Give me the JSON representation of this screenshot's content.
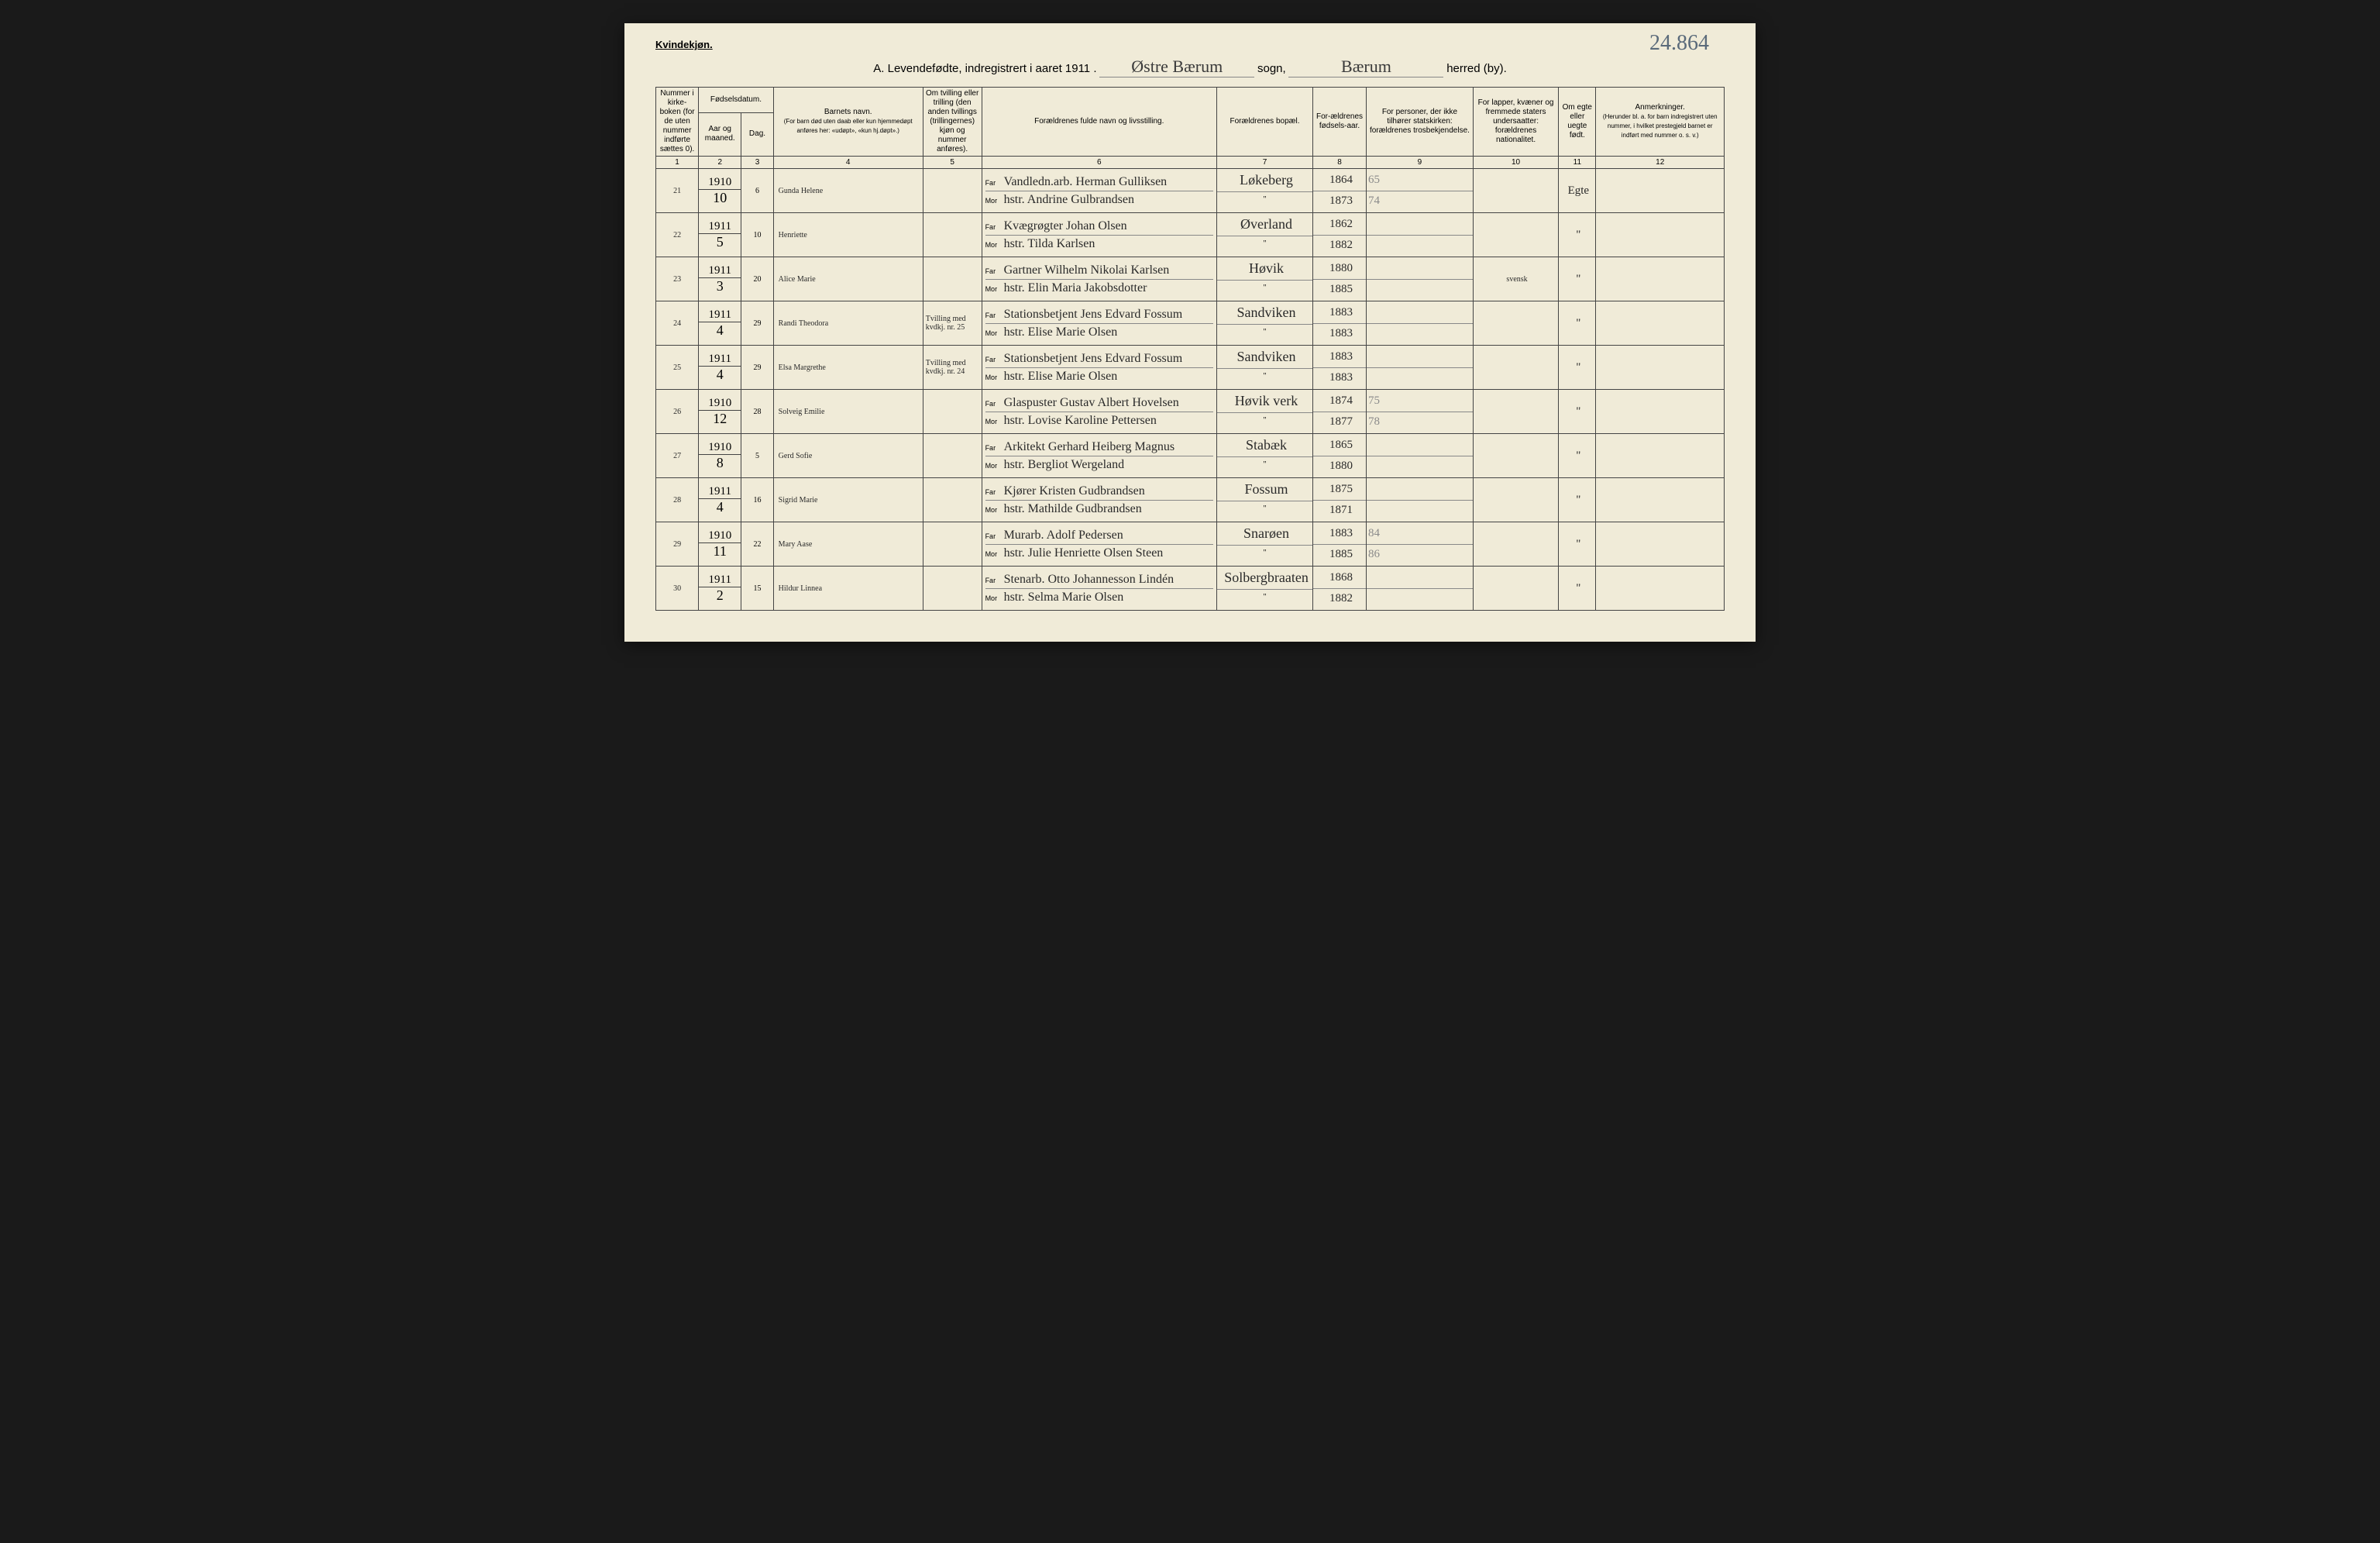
{
  "page": {
    "top_annotation": "24.864",
    "gender_label": "Kvindekjøn.",
    "title_prefix": "A.  Levendefødte, indregistrert i aaret 1911 .",
    "sogn_value": "Østre Bærum",
    "sogn_label": "sogn,",
    "herred_value": "Bærum",
    "herred_label": "herred (by)."
  },
  "headers": {
    "c1": "Nummer i kirke-boken (for de uten nummer indførte sættes 0).",
    "c2_group": "Fødselsdatum.",
    "c2a": "Aar og maaned.",
    "c2b": "Dag.",
    "c4": "Barnets navn.",
    "c4_sub": "(For barn død uten daab eller kun hjemmedøpt anføres her: «udøpt», «kun hj.døpt».)",
    "c5": "Om tvilling eller trilling (den anden tvillings (trillingernes) kjøn og nummer anføres).",
    "c6": "Forældrenes fulde navn og livsstilling.",
    "c7": "Forældrenes bopæl.",
    "c8": "For-ældrenes fødsels-aar.",
    "c9": "For personer, der ikke tilhører statskirken: forældrenes trosbekjendelse.",
    "c10": "For lapper, kvæner og fremmede staters undersaatter: forældrenes nationalitet.",
    "c11": "Om egte eller uegte født.",
    "c12": "Anmerkninger.",
    "c12_sub": "(Herunder bl. a. for barn indregistrert uten nummer, i hvilket prestegjeld barnet er indført med nummer o. s. v.)"
  },
  "colnums": [
    "1",
    "2",
    "3",
    "4",
    "5",
    "6",
    "7",
    "8",
    "9",
    "10",
    "11",
    "12"
  ],
  "parent_labels": {
    "far": "Far",
    "mor": "Mor"
  },
  "rows": [
    {
      "num": "21",
      "year": "1910",
      "month": "10",
      "day": "6",
      "child": "Gunda Helene",
      "twin": "",
      "far": "Vandledn.arb. Herman Gulliksen",
      "mor": "hstr. Andrine Gulbrandsen",
      "res_far": "Løkeberg",
      "res_mor": "\"",
      "by_far": "1864",
      "by_mor": "1873",
      "rel_far": "65",
      "rel_mor": "74",
      "nat": "",
      "legit": "Egte",
      "notes": ""
    },
    {
      "num": "22",
      "year": "1911",
      "month": "5",
      "day": "10",
      "child": "Henriette",
      "twin": "",
      "far": "Kvægrøgter Johan Olsen",
      "mor": "hstr. Tilda Karlsen",
      "res_far": "Øverland",
      "res_mor": "\"",
      "by_far": "1862",
      "by_mor": "1882",
      "rel_far": "",
      "rel_mor": "",
      "nat": "",
      "legit": "\"",
      "notes": ""
    },
    {
      "num": "23",
      "year": "1911",
      "month": "3",
      "day": "20",
      "child": "Alice Marie",
      "twin": "",
      "far": "Gartner Wilhelm Nikolai Karlsen",
      "mor": "hstr. Elin Maria Jakobsdotter",
      "res_far": "Høvik",
      "res_mor": "\"",
      "by_far": "1880",
      "by_mor": "1885",
      "rel_far": "",
      "rel_mor": "",
      "nat": "svensk",
      "legit": "\"",
      "notes": ""
    },
    {
      "num": "24",
      "year": "1911",
      "month": "4",
      "day": "29",
      "child": "Randi Theodora",
      "twin": "Tvilling med kvdkj. nr. 25",
      "far": "Stationsbetjent Jens Edvard Fossum",
      "mor": "hstr. Elise Marie Olsen",
      "res_far": "Sandviken",
      "res_mor": "\"",
      "by_far": "1883",
      "by_mor": "1883",
      "rel_far": "",
      "rel_mor": "",
      "nat": "",
      "legit": "\"",
      "notes": ""
    },
    {
      "num": "25",
      "year": "1911",
      "month": "4",
      "day": "29",
      "child": "Elsa Margrethe",
      "twin": "Tvilling med kvdkj. nr. 24",
      "far": "Stationsbetjent Jens Edvard Fossum",
      "mor": "hstr. Elise Marie Olsen",
      "res_far": "Sandviken",
      "res_mor": "\"",
      "by_far": "1883",
      "by_mor": "1883",
      "rel_far": "",
      "rel_mor": "",
      "nat": "",
      "legit": "\"",
      "notes": ""
    },
    {
      "num": "26",
      "year": "1910",
      "month": "12",
      "day": "28",
      "child": "Solveig Emilie",
      "twin": "",
      "far": "Glaspuster Gustav Albert Hovelsen",
      "mor": "hstr. Lovise Karoline Pettersen",
      "res_far": "Høvik verk",
      "res_mor": "\"",
      "by_far": "1874",
      "by_mor": "1877",
      "rel_far": "75",
      "rel_mor": "78",
      "nat": "",
      "legit": "\"",
      "notes": ""
    },
    {
      "num": "27",
      "year": "1910",
      "month": "8",
      "day": "5",
      "child": "Gerd Sofie",
      "twin": "",
      "far": "Arkitekt Gerhard Heiberg Magnus",
      "mor": "hstr. Bergliot Wergeland",
      "res_far": "Stabæk",
      "res_mor": "\"",
      "by_far": "1865",
      "by_mor": "1880",
      "rel_far": "",
      "rel_mor": "",
      "nat": "",
      "legit": "\"",
      "notes": ""
    },
    {
      "num": "28",
      "year": "1911",
      "month": "4",
      "day": "16",
      "child": "Sigrid Marie",
      "twin": "",
      "far": "Kjører Kristen Gudbrandsen",
      "mor": "hstr. Mathilde Gudbrandsen",
      "res_far": "Fossum",
      "res_mor": "\"",
      "by_far": "1875",
      "by_mor": "1871",
      "rel_far": "",
      "rel_mor": "",
      "nat": "",
      "legit": "\"",
      "notes": ""
    },
    {
      "num": "29",
      "year": "1910",
      "month": "11",
      "day": "22",
      "child": "Mary Aase",
      "twin": "",
      "far": "Murarb. Adolf Pedersen",
      "mor": "hstr. Julie Henriette Olsen Steen",
      "res_far": "Snarøen",
      "res_mor": "\"",
      "by_far": "1883",
      "by_mor": "1885",
      "rel_far": "84",
      "rel_mor": "86",
      "nat": "",
      "legit": "\"",
      "notes": ""
    },
    {
      "num": "30",
      "year": "1911",
      "month": "2",
      "day": "15",
      "child": "Hildur Linnea",
      "twin": "",
      "far": "Stenarb. Otto Johannesson Lindén",
      "mor": "hstr. Selma Marie Olsen",
      "res_far": "Solbergbraaten",
      "res_mor": "\"",
      "by_far": "1868",
      "by_mor": "1882",
      "rel_far": "",
      "rel_mor": "",
      "nat": "",
      "legit": "\"",
      "notes": ""
    }
  ]
}
